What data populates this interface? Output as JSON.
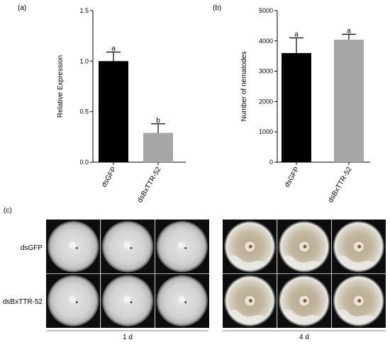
{
  "panels": {
    "a": {
      "letter": "(a)"
    },
    "b": {
      "letter": "(b)"
    },
    "c": {
      "letter": "(c)"
    }
  },
  "chart_data": [
    {
      "type": "bar",
      "panel": "(a)",
      "categories": [
        "dsGFP",
        "dsBxTTR-52"
      ],
      "values": [
        1.0,
        0.29
      ],
      "errors": [
        0.09,
        0.09
      ],
      "significance": [
        "a",
        "b"
      ],
      "bar_colors": [
        "#000000",
        "#a6a6a6"
      ],
      "ylabel": "Relative Expression",
      "ylim": [
        0,
        1.5
      ],
      "yticks": [
        "0.0",
        "0.5",
        "1.0",
        "1.5"
      ],
      "grid": false
    },
    {
      "type": "bar",
      "panel": "(b)",
      "categories": [
        "dsGFP",
        "dsBxTTR-52"
      ],
      "values": [
        3600,
        4040
      ],
      "errors": [
        500,
        180
      ],
      "significance": [
        "a",
        "a"
      ],
      "bar_colors": [
        "#000000",
        "#a6a6a6"
      ],
      "ylabel": "Number of nematodes",
      "ylim": [
        0,
        5000
      ],
      "yticks": [
        "0",
        "1000",
        "2000",
        "3000",
        "4000",
        "5000"
      ],
      "grid": false
    }
  ],
  "photo_panel": {
    "row_labels": [
      "dsGFP",
      "dsBxTTR-52"
    ],
    "group_labels": [
      "1 d",
      "4 d"
    ]
  }
}
